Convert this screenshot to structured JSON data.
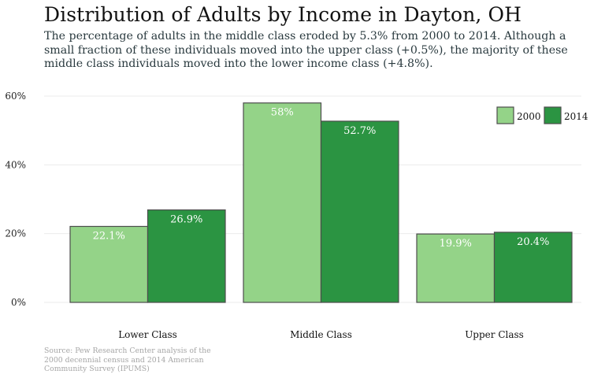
{
  "chart_data": {
    "type": "bar",
    "title": "Distribution of Adults by Income in Dayton, OH",
    "subtitle": "The percentage of adults in the middle class eroded by 5.3% from 2000 to 2014. Although a small fraction of these individuals moved into the upper class (+0.5%), the majority of these middle class individuals moved into the lower income class (+4.8%).",
    "categories": [
      "Lower Class",
      "Middle Class",
      "Upper Class"
    ],
    "series": [
      {
        "name": "2000",
        "values": [
          22.1,
          58,
          19.9
        ],
        "labels": [
          "22.1%",
          "58%",
          "19.9%"
        ],
        "color": "#94d388"
      },
      {
        "name": "2014",
        "values": [
          26.9,
          52.7,
          20.4
        ],
        "labels": [
          "26.9%",
          "52.7%",
          "20.4%"
        ],
        "color": "#2b9442"
      }
    ],
    "y_ticks": [
      0,
      20,
      40,
      60
    ],
    "y_tick_labels": [
      "0%",
      "20%",
      "40%",
      "60%"
    ],
    "ylim": [
      0,
      60
    ],
    "grid": true,
    "legend_position": "top-right",
    "source": "Source: Pew Research Center analysis of the 2000 decennial census and 2014 American Community Survey (IPUMS)"
  }
}
